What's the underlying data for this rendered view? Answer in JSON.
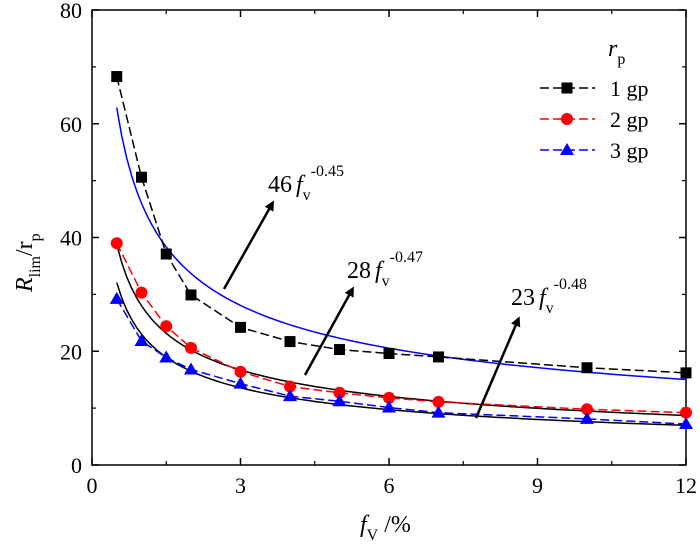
{
  "chart_data": {
    "type": "line",
    "xlabel": {
      "base": "f",
      "sub": "V",
      "rest": " /%"
    },
    "ylabel": {
      "base1": "R",
      "sub1": "lim",
      "mid": "/r",
      "sub2": "p"
    },
    "xlim": [
      0,
      12
    ],
    "ylim": [
      0,
      80
    ],
    "xticks": [
      "0",
      "3",
      "6",
      "9",
      "12"
    ],
    "yticks": [
      "0",
      "20",
      "40",
      "60",
      "80"
    ],
    "legend_title": {
      "base": "r",
      "sub": "p"
    },
    "legend_position": "top-right",
    "series": [
      {
        "name": "1 gp",
        "color": "#000000",
        "marker": "square",
        "dash": "dashed",
        "x": [
          0.5,
          1,
          1.5,
          2,
          3,
          4,
          5,
          6,
          7,
          10,
          12
        ],
        "y": [
          68.3,
          50.6,
          37.1,
          29.9,
          24.2,
          21.7,
          20.3,
          19.6,
          19.0,
          17.1,
          16.2
        ]
      },
      {
        "name": "2 gp",
        "color": "#ff0000",
        "marker": "circle",
        "dash": "dashed",
        "x": [
          0.5,
          1,
          1.5,
          2,
          3,
          4,
          5,
          6,
          7,
          10,
          12
        ],
        "y": [
          39.0,
          30.3,
          24.4,
          20.6,
          16.4,
          13.8,
          12.7,
          11.8,
          11.1,
          9.8,
          9.2
        ]
      },
      {
        "name": "3 gp",
        "color": "#0000ff",
        "marker": "triangle",
        "dash": "dashed",
        "x": [
          0.5,
          1,
          1.5,
          2,
          3,
          4,
          5,
          6,
          7,
          10,
          12
        ],
        "y": [
          29.2,
          21.8,
          18.9,
          16.8,
          14.3,
          12.1,
          11.2,
          10.1,
          9.2,
          8.1,
          7.2
        ]
      }
    ],
    "fits": [
      {
        "coef": 46,
        "exp": -0.45,
        "color": "#0000ff",
        "label_base": "46",
        "label_var": "f",
        "label_sub": "v",
        "label_exp": "-0.45"
      },
      {
        "coef": 28,
        "exp": -0.47,
        "color": "#000000",
        "label_base": "28",
        "label_var": "f",
        "label_sub": "v",
        "label_exp": "-0.47"
      },
      {
        "coef": 23,
        "exp": -0.48,
        "color": "#000000",
        "label_base": "23",
        "label_var": "f",
        "label_sub": "v",
        "label_exp": "-0.48"
      }
    ],
    "arrow_color": "#000000"
  }
}
